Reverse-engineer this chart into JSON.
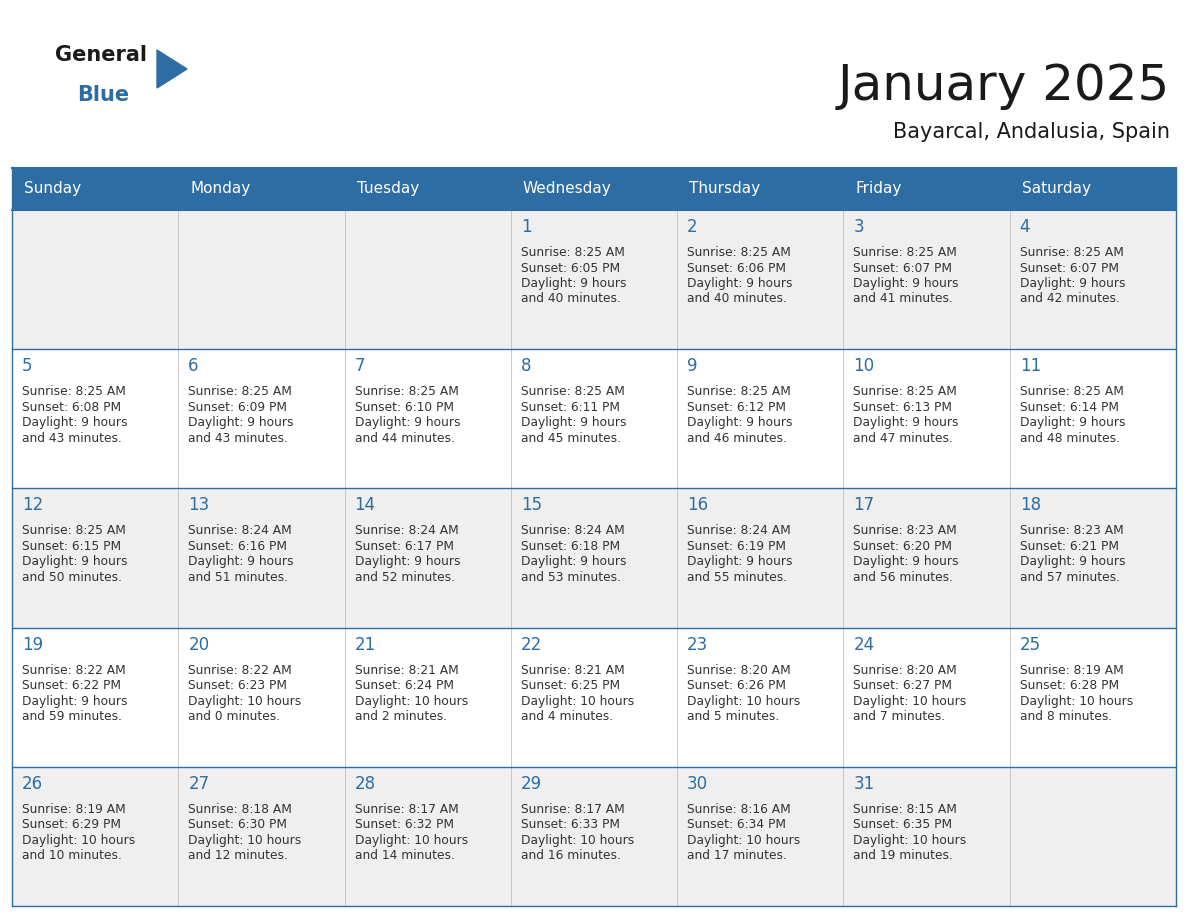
{
  "title": "January 2025",
  "subtitle": "Bayarcal, Andalusia, Spain",
  "days_of_week": [
    "Sunday",
    "Monday",
    "Tuesday",
    "Wednesday",
    "Thursday",
    "Friday",
    "Saturday"
  ],
  "header_bg_color": "#2E6DA4",
  "header_text_color": "#FFFFFF",
  "cell_bg_even": "#EFEFEF",
  "cell_bg_odd": "#FFFFFF",
  "grid_line_color": "#2E6DA4",
  "text_color": "#333333",
  "day_number_color": "#2E6DA4",
  "title_color": "#1a1a1a",
  "subtitle_color": "#1a1a1a",
  "logo_general_color": "#1a1a1a",
  "logo_blue_color": "#2E6DA4",
  "weeks": [
    {
      "days": [
        {
          "date": "",
          "sunrise": "",
          "sunset": "",
          "daylight": ""
        },
        {
          "date": "",
          "sunrise": "",
          "sunset": "",
          "daylight": ""
        },
        {
          "date": "",
          "sunrise": "",
          "sunset": "",
          "daylight": ""
        },
        {
          "date": "1",
          "sunrise": "8:25 AM",
          "sunset": "6:05 PM",
          "daylight": "9 hours\nand 40 minutes."
        },
        {
          "date": "2",
          "sunrise": "8:25 AM",
          "sunset": "6:06 PM",
          "daylight": "9 hours\nand 40 minutes."
        },
        {
          "date": "3",
          "sunrise": "8:25 AM",
          "sunset": "6:07 PM",
          "daylight": "9 hours\nand 41 minutes."
        },
        {
          "date": "4",
          "sunrise": "8:25 AM",
          "sunset": "6:07 PM",
          "daylight": "9 hours\nand 42 minutes."
        }
      ]
    },
    {
      "days": [
        {
          "date": "5",
          "sunrise": "8:25 AM",
          "sunset": "6:08 PM",
          "daylight": "9 hours\nand 43 minutes."
        },
        {
          "date": "6",
          "sunrise": "8:25 AM",
          "sunset": "6:09 PM",
          "daylight": "9 hours\nand 43 minutes."
        },
        {
          "date": "7",
          "sunrise": "8:25 AM",
          "sunset": "6:10 PM",
          "daylight": "9 hours\nand 44 minutes."
        },
        {
          "date": "8",
          "sunrise": "8:25 AM",
          "sunset": "6:11 PM",
          "daylight": "9 hours\nand 45 minutes."
        },
        {
          "date": "9",
          "sunrise": "8:25 AM",
          "sunset": "6:12 PM",
          "daylight": "9 hours\nand 46 minutes."
        },
        {
          "date": "10",
          "sunrise": "8:25 AM",
          "sunset": "6:13 PM",
          "daylight": "9 hours\nand 47 minutes."
        },
        {
          "date": "11",
          "sunrise": "8:25 AM",
          "sunset": "6:14 PM",
          "daylight": "9 hours\nand 48 minutes."
        }
      ]
    },
    {
      "days": [
        {
          "date": "12",
          "sunrise": "8:25 AM",
          "sunset": "6:15 PM",
          "daylight": "9 hours\nand 50 minutes."
        },
        {
          "date": "13",
          "sunrise": "8:24 AM",
          "sunset": "6:16 PM",
          "daylight": "9 hours\nand 51 minutes."
        },
        {
          "date": "14",
          "sunrise": "8:24 AM",
          "sunset": "6:17 PM",
          "daylight": "9 hours\nand 52 minutes."
        },
        {
          "date": "15",
          "sunrise": "8:24 AM",
          "sunset": "6:18 PM",
          "daylight": "9 hours\nand 53 minutes."
        },
        {
          "date": "16",
          "sunrise": "8:24 AM",
          "sunset": "6:19 PM",
          "daylight": "9 hours\nand 55 minutes."
        },
        {
          "date": "17",
          "sunrise": "8:23 AM",
          "sunset": "6:20 PM",
          "daylight": "9 hours\nand 56 minutes."
        },
        {
          "date": "18",
          "sunrise": "8:23 AM",
          "sunset": "6:21 PM",
          "daylight": "9 hours\nand 57 minutes."
        }
      ]
    },
    {
      "days": [
        {
          "date": "19",
          "sunrise": "8:22 AM",
          "sunset": "6:22 PM",
          "daylight": "9 hours\nand 59 minutes."
        },
        {
          "date": "20",
          "sunrise": "8:22 AM",
          "sunset": "6:23 PM",
          "daylight": "10 hours\nand 0 minutes."
        },
        {
          "date": "21",
          "sunrise": "8:21 AM",
          "sunset": "6:24 PM",
          "daylight": "10 hours\nand 2 minutes."
        },
        {
          "date": "22",
          "sunrise": "8:21 AM",
          "sunset": "6:25 PM",
          "daylight": "10 hours\nand 4 minutes."
        },
        {
          "date": "23",
          "sunrise": "8:20 AM",
          "sunset": "6:26 PM",
          "daylight": "10 hours\nand 5 minutes."
        },
        {
          "date": "24",
          "sunrise": "8:20 AM",
          "sunset": "6:27 PM",
          "daylight": "10 hours\nand 7 minutes."
        },
        {
          "date": "25",
          "sunrise": "8:19 AM",
          "sunset": "6:28 PM",
          "daylight": "10 hours\nand 8 minutes."
        }
      ]
    },
    {
      "days": [
        {
          "date": "26",
          "sunrise": "8:19 AM",
          "sunset": "6:29 PM",
          "daylight": "10 hours\nand 10 minutes."
        },
        {
          "date": "27",
          "sunrise": "8:18 AM",
          "sunset": "6:30 PM",
          "daylight": "10 hours\nand 12 minutes."
        },
        {
          "date": "28",
          "sunrise": "8:17 AM",
          "sunset": "6:32 PM",
          "daylight": "10 hours\nand 14 minutes."
        },
        {
          "date": "29",
          "sunrise": "8:17 AM",
          "sunset": "6:33 PM",
          "daylight": "10 hours\nand 16 minutes."
        },
        {
          "date": "30",
          "sunrise": "8:16 AM",
          "sunset": "6:34 PM",
          "daylight": "10 hours\nand 17 minutes."
        },
        {
          "date": "31",
          "sunrise": "8:15 AM",
          "sunset": "6:35 PM",
          "daylight": "10 hours\nand 19 minutes."
        },
        {
          "date": "",
          "sunrise": "",
          "sunset": "",
          "daylight": ""
        }
      ]
    }
  ]
}
